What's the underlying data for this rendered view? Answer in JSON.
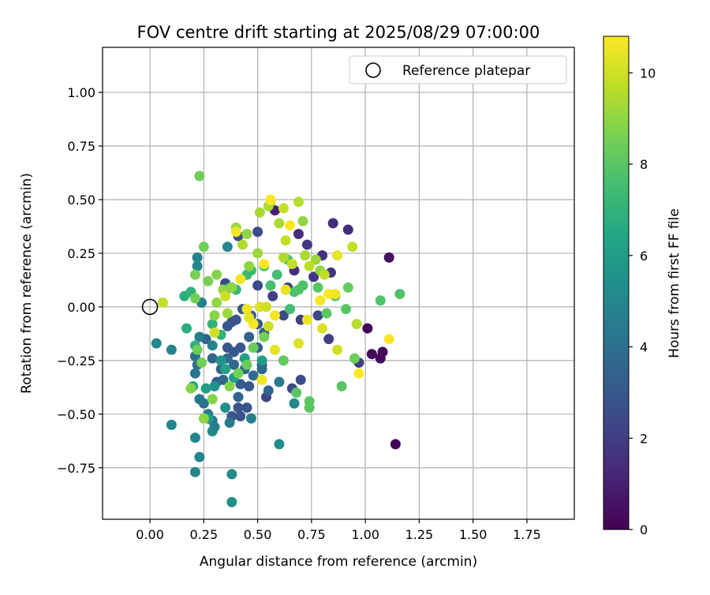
{
  "chart_data": {
    "type": "scatter",
    "title": "FOV centre drift starting at 2025/08/29 07:00:00",
    "xlabel": "Angular distance from reference (arcmin)",
    "ylabel": "Rotation from reference (arcmin)",
    "xlim": [
      -0.22,
      1.97
    ],
    "ylim": [
      -0.99,
      1.21
    ],
    "x_ticks": [
      0.0,
      0.25,
      0.5,
      0.75,
      1.0,
      1.25,
      1.5,
      1.75
    ],
    "x_tick_labels": [
      "0.00",
      "0.25",
      "0.50",
      "0.75",
      "1.00",
      "1.25",
      "1.50",
      "1.75"
    ],
    "y_ticks": [
      -0.75,
      -0.5,
      -0.25,
      0.0,
      0.25,
      0.5,
      0.75,
      1.0
    ],
    "y_tick_labels": [
      "−0.75",
      "−0.50",
      "−0.25",
      "0.00",
      "0.25",
      "0.50",
      "0.75",
      "1.00"
    ],
    "grid": true,
    "legend": {
      "position": "top-right",
      "entries": [
        {
          "label": "Reference platepar",
          "marker": "open-circle"
        }
      ]
    },
    "reference_point": {
      "x": 0.0,
      "y": 0.0
    },
    "colorbar": {
      "label": "Hours from first FF file",
      "colormap": "viridis",
      "range": [
        0,
        10.8
      ],
      "ticks": [
        0,
        2,
        4,
        6,
        8,
        10
      ],
      "tick_labels": [
        "0",
        "2",
        "4",
        "6",
        "8",
        "10"
      ]
    },
    "points": [
      [
        1.01,
        -0.1,
        0.1
      ],
      [
        1.03,
        -0.22,
        0.2
      ],
      [
        1.08,
        -0.21,
        0.2
      ],
      [
        1.07,
        -0.24,
        0.3
      ],
      [
        1.11,
        0.23,
        0.4
      ],
      [
        1.14,
        -0.64,
        0.2
      ],
      [
        0.58,
        0.45,
        1.0
      ],
      [
        0.85,
        0.39,
        1.5
      ],
      [
        0.92,
        0.36,
        1.5
      ],
      [
        0.69,
        0.34,
        1.4
      ],
      [
        0.8,
        0.24,
        1.6
      ],
      [
        0.73,
        0.29,
        1.8
      ],
      [
        0.67,
        0.17,
        1.5
      ],
      [
        0.84,
        0.16,
        1.7
      ],
      [
        0.76,
        0.14,
        1.7
      ],
      [
        0.64,
        0.09,
        2.0
      ],
      [
        0.57,
        0.05,
        2.0
      ],
      [
        0.62,
        -0.04,
        2.4
      ],
      [
        0.7,
        -0.06,
        2.0
      ],
      [
        0.78,
        -0.04,
        2.3
      ],
      [
        0.83,
        -0.15,
        2.0
      ],
      [
        0.97,
        -0.26,
        2.0
      ],
      [
        0.7,
        -0.34,
        2.5
      ],
      [
        0.66,
        -0.38,
        2.4
      ],
      [
        0.54,
        -0.42,
        2.3
      ],
      [
        0.46,
        -0.37,
        3.0
      ],
      [
        0.41,
        -0.47,
        2.8
      ],
      [
        0.45,
        -0.47,
        2.8
      ],
      [
        0.38,
        -0.51,
        2.8
      ],
      [
        0.42,
        -0.51,
        2.8
      ],
      [
        0.5,
        0.35,
        2.5
      ],
      [
        0.41,
        0.33,
        2.4
      ],
      [
        0.5,
        0.1,
        2.5
      ],
      [
        0.35,
        0.11,
        2.5
      ],
      [
        0.38,
        -0.07,
        2.6
      ],
      [
        0.4,
        -0.06,
        2.8
      ],
      [
        0.36,
        -0.09,
        3.0
      ],
      [
        0.43,
        -0.01,
        3.0
      ],
      [
        0.47,
        -0.04,
        3.0
      ],
      [
        0.5,
        -0.08,
        3.0
      ],
      [
        0.53,
        -0.12,
        3.0
      ],
      [
        0.36,
        -0.19,
        3.0
      ],
      [
        0.39,
        -0.21,
        3.0
      ],
      [
        0.42,
        -0.19,
        3.0
      ],
      [
        0.46,
        -0.14,
        3.4
      ],
      [
        0.5,
        -0.19,
        3.2
      ],
      [
        0.52,
        -0.27,
        3.0
      ],
      [
        0.26,
        -0.15,
        3.5
      ],
      [
        0.29,
        -0.24,
        3.5
      ],
      [
        0.31,
        -0.35,
        3.2
      ],
      [
        0.33,
        -0.29,
        3.4
      ],
      [
        0.34,
        -0.34,
        3.6
      ],
      [
        0.42,
        -0.36,
        3.3
      ],
      [
        0.41,
        -0.42,
        3.6
      ],
      [
        0.36,
        -0.24,
        3.8
      ],
      [
        0.39,
        -0.27,
        3.7
      ],
      [
        0.44,
        -0.29,
        3.6
      ],
      [
        0.48,
        -0.32,
        3.8
      ],
      [
        0.52,
        -0.29,
        3.6
      ],
      [
        0.55,
        -0.39,
        3.5
      ],
      [
        0.21,
        -0.23,
        4.0
      ],
      [
        0.22,
        -0.27,
        4.0
      ],
      [
        0.21,
        -0.31,
        4.2
      ],
      [
        0.23,
        -0.43,
        4.3
      ],
      [
        0.25,
        -0.45,
        4.2
      ],
      [
        0.27,
        -0.5,
        4.4
      ],
      [
        0.29,
        -0.53,
        4.4
      ],
      [
        0.3,
        -0.56,
        4.5
      ],
      [
        0.37,
        -0.54,
        4.4
      ],
      [
        0.47,
        -0.52,
        4.6
      ],
      [
        0.6,
        -0.35,
        4.3
      ],
      [
        0.67,
        -0.45,
        5.0
      ],
      [
        0.23,
        -0.14,
        4.6
      ],
      [
        0.29,
        -0.18,
        4.8
      ],
      [
        0.24,
        0.02,
        4.7
      ],
      [
        0.22,
        0.23,
        4.8
      ],
      [
        0.22,
        0.19,
        5.0
      ],
      [
        0.36,
        0.28,
        5.0
      ],
      [
        0.1,
        -0.2,
        4.8
      ],
      [
        0.03,
        -0.17,
        5.0
      ],
      [
        0.1,
        -0.55,
        5.0
      ],
      [
        0.21,
        -0.61,
        5.0
      ],
      [
        0.23,
        -0.7,
        5.0
      ],
      [
        0.21,
        -0.77,
        5.0
      ],
      [
        0.38,
        -0.78,
        5.2
      ],
      [
        0.38,
        -0.91,
        5.4
      ],
      [
        0.6,
        -0.64,
        5.2
      ],
      [
        0.29,
        -0.58,
        5.0
      ],
      [
        0.35,
        -0.47,
        5.4
      ],
      [
        0.3,
        -0.37,
        5.6
      ],
      [
        0.33,
        -0.25,
        5.6
      ],
      [
        0.26,
        -0.38,
        6.0
      ],
      [
        0.27,
        -0.52,
        6.0
      ],
      [
        0.35,
        -0.29,
        6.2
      ],
      [
        0.39,
        -0.33,
        6.0
      ],
      [
        0.44,
        -0.24,
        6.2
      ],
      [
        0.52,
        -0.25,
        6.0
      ],
      [
        0.2,
        -0.37,
        6.6
      ],
      [
        0.16,
        0.05,
        6.8
      ],
      [
        0.19,
        0.07,
        7.0
      ],
      [
        0.17,
        -0.1,
        6.8
      ],
      [
        0.21,
        -0.18,
        6.9
      ],
      [
        0.29,
        -0.08,
        7.0
      ],
      [
        0.33,
        -0.13,
        7.0
      ],
      [
        0.37,
        0.09,
        7.0
      ],
      [
        0.35,
        0.07,
        7.2
      ],
      [
        0.4,
        0.08,
        7.3
      ],
      [
        0.47,
        0.17,
        7.4
      ],
      [
        0.45,
        0.15,
        7.3
      ],
      [
        0.53,
        0.19,
        7.5
      ],
      [
        0.56,
        0.1,
        7.6
      ],
      [
        0.59,
        0.15,
        7.5
      ],
      [
        0.64,
        0.22,
        7.8
      ],
      [
        0.67,
        0.07,
        7.6
      ],
      [
        0.69,
        0.08,
        7.8
      ],
      [
        0.65,
        -0.01,
        7.5
      ],
      [
        0.71,
        0.1,
        7.8
      ],
      [
        0.78,
        0.09,
        8.0
      ],
      [
        0.82,
        -0.03,
        8.0
      ],
      [
        0.86,
        0.05,
        8.0
      ],
      [
        0.91,
        -0.01,
        8.0
      ],
      [
        0.92,
        0.09,
        8.2
      ],
      [
        0.95,
        -0.24,
        8.4
      ],
      [
        0.89,
        -0.37,
        8.0
      ],
      [
        1.07,
        0.03,
        7.8
      ],
      [
        1.16,
        0.06,
        7.8
      ],
      [
        0.74,
        -0.44,
        8.0
      ],
      [
        0.74,
        -0.47,
        8.0
      ],
      [
        0.68,
        -0.4,
        8.0
      ],
      [
        0.62,
        -0.25,
        8.2
      ],
      [
        0.53,
        -0.14,
        8.5
      ],
      [
        0.48,
        -0.19,
        8.3
      ],
      [
        0.45,
        -0.27,
        8.3
      ],
      [
        0.41,
        -0.31,
        8.5
      ],
      [
        0.37,
        -0.37,
        8.8
      ],
      [
        0.29,
        -0.43,
        8.8
      ],
      [
        0.25,
        -0.52,
        9.0
      ],
      [
        0.19,
        -0.38,
        8.8
      ],
      [
        0.24,
        -0.26,
        8.5
      ],
      [
        0.22,
        -0.2,
        8.4
      ],
      [
        0.21,
        0.15,
        8.6
      ],
      [
        0.21,
        0.04,
        8.5
      ],
      [
        0.23,
        0.61,
        8.4
      ],
      [
        0.25,
        0.28,
        8.5
      ],
      [
        0.27,
        0.12,
        8.6
      ],
      [
        0.31,
        0.15,
        8.8
      ],
      [
        0.3,
        -0.04,
        8.9
      ],
      [
        0.31,
        0.02,
        9.0
      ],
      [
        0.34,
        0.08,
        9.0
      ],
      [
        0.38,
        0.09,
        9.0
      ],
      [
        0.36,
        -0.03,
        9.2
      ],
      [
        0.4,
        0.37,
        9.2
      ],
      [
        0.43,
        0.29,
        9.5
      ],
      [
        0.45,
        0.34,
        9.0
      ],
      [
        0.46,
        0.19,
        9.0
      ],
      [
        0.5,
        0.25,
        9.2
      ],
      [
        0.51,
        0.44,
        9.4
      ],
      [
        0.55,
        0.47,
        9.4
      ],
      [
        0.56,
        0.49,
        9.6
      ],
      [
        0.6,
        0.39,
        9.4
      ],
      [
        0.62,
        0.46,
        9.8
      ],
      [
        0.69,
        0.49,
        9.6
      ],
      [
        0.71,
        0.4,
        9.0
      ],
      [
        0.63,
        0.31,
        9.8
      ],
      [
        0.66,
        0.2,
        9.8
      ],
      [
        0.62,
        0.23,
        9.5
      ],
      [
        0.72,
        0.24,
        9.4
      ],
      [
        0.77,
        0.22,
        9.2
      ],
      [
        0.79,
        0.17,
        9.0
      ],
      [
        0.74,
        0.19,
        9.7
      ],
      [
        0.81,
        0.15,
        9.8
      ],
      [
        0.87,
        0.24,
        10.4
      ],
      [
        0.94,
        0.28,
        9.8
      ],
      [
        0.96,
        -0.08,
        9.6
      ],
      [
        0.87,
        -0.2,
        10.0
      ],
      [
        0.8,
        -0.1,
        10.2
      ],
      [
        0.73,
        -0.06,
        10.5
      ],
      [
        0.69,
        -0.17,
        10.2
      ],
      [
        0.63,
        0.08,
        10.4
      ],
      [
        0.58,
        -0.04,
        10.6
      ],
      [
        0.58,
        -0.2,
        10.4
      ],
      [
        0.52,
        -0.34,
        10.6
      ],
      [
        0.53,
        0.2,
        10.8
      ],
      [
        0.65,
        0.38,
        10.8
      ],
      [
        0.56,
        0.5,
        10.8
      ],
      [
        0.4,
        0.35,
        10.6
      ],
      [
        0.42,
        0.13,
        10.6
      ],
      [
        0.48,
        -0.08,
        10.8
      ],
      [
        0.51,
        0.0,
        10.2
      ],
      [
        0.54,
        0.0,
        10.0
      ],
      [
        0.55,
        -0.09,
        10.0
      ],
      [
        0.45,
        -0.01,
        10.6
      ],
      [
        0.46,
        -0.05,
        10.4
      ],
      [
        0.35,
        0.05,
        10.0
      ],
      [
        0.3,
        -0.12,
        10.0
      ],
      [
        0.06,
        0.02,
        9.8
      ],
      [
        0.83,
        0.06,
        10.8
      ],
      [
        0.86,
        0.06,
        10.6
      ],
      [
        0.79,
        0.03,
        10.6
      ],
      [
        0.97,
        -0.31,
        11.0
      ],
      [
        1.11,
        -0.15,
        10.8
      ]
    ]
  }
}
